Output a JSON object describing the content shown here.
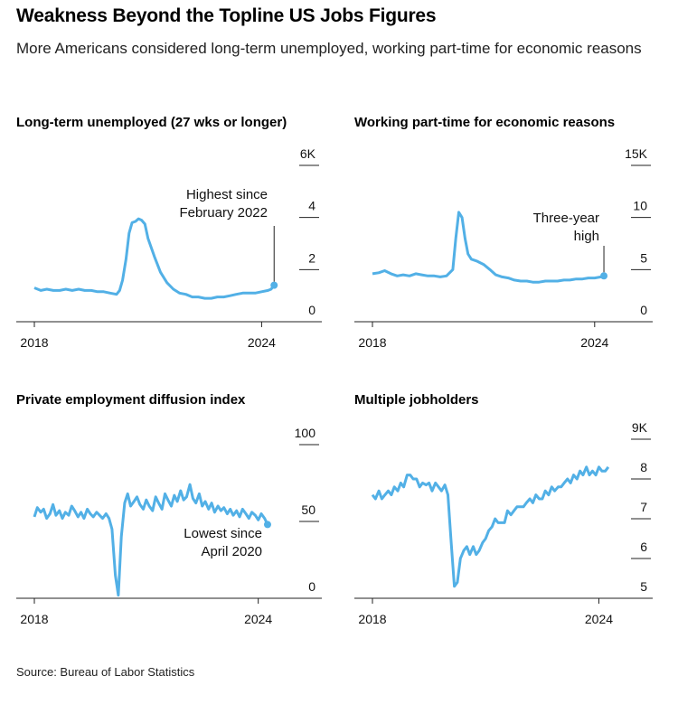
{
  "header": {
    "title": "Weakness Beyond the Topline US Jobs Figures",
    "subtitle": "More Americans considered long-term unemployed, working part-time for economic reasons"
  },
  "footer": {
    "source": "Source: Bureau of Labor Statistics"
  },
  "colors": {
    "line": "#52b0e6",
    "axis": "#222222",
    "text": "#000000"
  },
  "chart_data": [
    {
      "type": "line",
      "title": "Long-term unemployed (27 wks or longer)",
      "x_tick_labels": [
        "2018",
        "2024"
      ],
      "y_tick_labels": [
        "6K",
        "4",
        "2",
        "0"
      ],
      "y_ticks": [
        6,
        4,
        2,
        0
      ],
      "ylim": [
        0,
        6
      ],
      "x_range": [
        2018.0,
        2024.42
      ],
      "grid": false,
      "annotation": {
        "text_lines": [
          "Highest since",
          "February 2022"
        ]
      },
      "series": [
        {
          "x": [
            2018.0,
            2018.17,
            2018.33,
            2018.5,
            2018.67,
            2018.83,
            2019.0,
            2019.17,
            2019.33,
            2019.5,
            2019.67,
            2019.83,
            2020.0,
            2020.17,
            2020.25,
            2020.33,
            2020.42,
            2020.5,
            2020.58,
            2020.67,
            2020.75,
            2020.83,
            2020.92,
            2021.0,
            2021.17,
            2021.33,
            2021.5,
            2021.67,
            2021.83,
            2022.0,
            2022.17,
            2022.33,
            2022.5,
            2022.67,
            2022.83,
            2023.0,
            2023.17,
            2023.33,
            2023.5,
            2023.67,
            2023.83,
            2024.0,
            2024.17,
            2024.25,
            2024.33
          ],
          "y": [
            1.3,
            1.2,
            1.25,
            1.2,
            1.2,
            1.25,
            1.2,
            1.25,
            1.2,
            1.2,
            1.15,
            1.15,
            1.1,
            1.05,
            1.2,
            1.6,
            2.4,
            3.4,
            3.8,
            3.85,
            3.95,
            3.9,
            3.75,
            3.2,
            2.5,
            1.9,
            1.5,
            1.25,
            1.1,
            1.05,
            0.95,
            0.95,
            0.9,
            0.9,
            0.95,
            0.95,
            1.0,
            1.05,
            1.1,
            1.1,
            1.1,
            1.15,
            1.2,
            1.25,
            1.4
          ]
        }
      ]
    },
    {
      "type": "line",
      "title": "Working part-time for economic reasons",
      "x_tick_labels": [
        "2018",
        "2024"
      ],
      "y_tick_labels": [
        "15K",
        "10",
        "5",
        "0"
      ],
      "y_ticks": [
        15,
        10,
        5,
        0
      ],
      "ylim": [
        0,
        15
      ],
      "x_range": [
        2018.0,
        2024.42
      ],
      "grid": false,
      "annotation": {
        "text_lines": [
          "Three-year",
          "high"
        ]
      },
      "series": [
        {
          "x": [
            2018.0,
            2018.17,
            2018.33,
            2018.5,
            2018.67,
            2018.83,
            2019.0,
            2019.17,
            2019.33,
            2019.5,
            2019.67,
            2019.83,
            2020.0,
            2020.17,
            2020.25,
            2020.33,
            2020.42,
            2020.5,
            2020.58,
            2020.67,
            2020.83,
            2021.0,
            2021.17,
            2021.33,
            2021.5,
            2021.67,
            2021.83,
            2022.0,
            2022.17,
            2022.33,
            2022.5,
            2022.67,
            2022.83,
            2023.0,
            2023.17,
            2023.33,
            2023.5,
            2023.67,
            2023.83,
            2024.0,
            2024.17,
            2024.25
          ],
          "y": [
            4.6,
            4.7,
            4.9,
            4.6,
            4.4,
            4.5,
            4.4,
            4.6,
            4.5,
            4.4,
            4.4,
            4.3,
            4.4,
            5.0,
            8.0,
            10.5,
            10.0,
            8.0,
            6.5,
            6.0,
            5.8,
            5.5,
            5.0,
            4.5,
            4.3,
            4.2,
            4.0,
            3.9,
            3.9,
            3.8,
            3.8,
            3.9,
            3.9,
            3.9,
            4.0,
            4.0,
            4.1,
            4.1,
            4.2,
            4.2,
            4.3,
            4.4
          ]
        }
      ]
    },
    {
      "type": "line",
      "title": "Private employment diffusion index",
      "x_tick_labels": [
        "2018",
        "2024"
      ],
      "y_tick_labels": [
        "100",
        "50",
        "0"
      ],
      "y_ticks": [
        100,
        50,
        0
      ],
      "ylim": [
        0,
        100
      ],
      "x_range": [
        2018.0,
        2024.42
      ],
      "grid": false,
      "annotation": {
        "text_lines": [
          "Lowest since",
          "April 2020"
        ]
      },
      "series": [
        {
          "x": [
            2018.0,
            2018.08,
            2018.17,
            2018.25,
            2018.33,
            2018.42,
            2018.5,
            2018.58,
            2018.67,
            2018.75,
            2018.83,
            2018.92,
            2019.0,
            2019.08,
            2019.17,
            2019.25,
            2019.33,
            2019.42,
            2019.5,
            2019.58,
            2019.67,
            2019.75,
            2019.83,
            2019.92,
            2020.0,
            2020.08,
            2020.17,
            2020.25,
            2020.33,
            2020.42,
            2020.5,
            2020.58,
            2020.67,
            2020.75,
            2020.83,
            2020.92,
            2021.0,
            2021.08,
            2021.17,
            2021.25,
            2021.33,
            2021.42,
            2021.5,
            2021.58,
            2021.67,
            2021.75,
            2021.83,
            2021.92,
            2022.0,
            2022.08,
            2022.17,
            2022.25,
            2022.33,
            2022.42,
            2022.5,
            2022.58,
            2022.67,
            2022.75,
            2022.83,
            2022.92,
            2023.0,
            2023.08,
            2023.17,
            2023.25,
            2023.33,
            2023.42,
            2023.5,
            2023.58,
            2023.67,
            2023.75,
            2023.83,
            2023.92,
            2024.0,
            2024.08,
            2024.17,
            2024.25
          ],
          "y": [
            53,
            59,
            56,
            58,
            52,
            55,
            61,
            54,
            57,
            52,
            56,
            54,
            60,
            57,
            53,
            56,
            52,
            58,
            55,
            53,
            56,
            54,
            52,
            55,
            52,
            45,
            15,
            2,
            40,
            62,
            68,
            60,
            63,
            66,
            61,
            58,
            64,
            60,
            57,
            66,
            62,
            58,
            68,
            64,
            60,
            67,
            63,
            70,
            64,
            66,
            74,
            65,
            62,
            68,
            60,
            63,
            58,
            62,
            56,
            60,
            57,
            59,
            55,
            58,
            54,
            57,
            53,
            58,
            55,
            52,
            56,
            54,
            51,
            55,
            52,
            48
          ]
        }
      ]
    },
    {
      "type": "line",
      "title": "Multiple jobholders",
      "x_tick_labels": [
        "2018",
        "2024"
      ],
      "y_tick_labels": [
        "9K",
        "8",
        "7",
        "6",
        "5"
      ],
      "y_ticks": [
        9,
        8,
        7,
        6,
        5
      ],
      "ylim": [
        5,
        9
      ],
      "x_range": [
        2018.0,
        2024.42
      ],
      "grid": false,
      "series": [
        {
          "x": [
            2018.0,
            2018.08,
            2018.17,
            2018.25,
            2018.33,
            2018.42,
            2018.5,
            2018.58,
            2018.67,
            2018.75,
            2018.83,
            2018.92,
            2019.0,
            2019.08,
            2019.17,
            2019.25,
            2019.33,
            2019.42,
            2019.5,
            2019.58,
            2019.67,
            2019.75,
            2019.83,
            2019.92,
            2020.0,
            2020.08,
            2020.17,
            2020.25,
            2020.33,
            2020.42,
            2020.5,
            2020.58,
            2020.67,
            2020.75,
            2020.83,
            2020.92,
            2021.0,
            2021.08,
            2021.17,
            2021.25,
            2021.33,
            2021.42,
            2021.5,
            2021.58,
            2021.67,
            2021.75,
            2021.83,
            2021.92,
            2022.0,
            2022.08,
            2022.17,
            2022.25,
            2022.33,
            2022.42,
            2022.5,
            2022.58,
            2022.67,
            2022.75,
            2022.83,
            2022.92,
            2023.0,
            2023.08,
            2023.17,
            2023.25,
            2023.33,
            2023.42,
            2023.5,
            2023.58,
            2023.67,
            2023.75,
            2023.83,
            2023.92,
            2024.0,
            2024.08,
            2024.17,
            2024.25
          ],
          "y": [
            7.6,
            7.5,
            7.7,
            7.5,
            7.6,
            7.7,
            7.6,
            7.8,
            7.7,
            7.9,
            7.8,
            8.1,
            8.1,
            8.0,
            8.0,
            7.8,
            7.9,
            7.85,
            7.9,
            7.7,
            7.9,
            7.8,
            7.7,
            7.85,
            7.6,
            6.5,
            5.3,
            5.4,
            6.0,
            6.2,
            6.3,
            6.1,
            6.3,
            6.1,
            6.2,
            6.4,
            6.5,
            6.7,
            6.8,
            7.0,
            6.9,
            6.9,
            6.9,
            7.2,
            7.1,
            7.2,
            7.3,
            7.3,
            7.3,
            7.4,
            7.5,
            7.4,
            7.6,
            7.5,
            7.5,
            7.7,
            7.6,
            7.8,
            7.7,
            7.8,
            7.8,
            7.9,
            8.0,
            7.9,
            8.1,
            8.0,
            8.2,
            8.1,
            8.3,
            8.1,
            8.2,
            8.1,
            8.3,
            8.2,
            8.2,
            8.3
          ]
        }
      ]
    }
  ]
}
